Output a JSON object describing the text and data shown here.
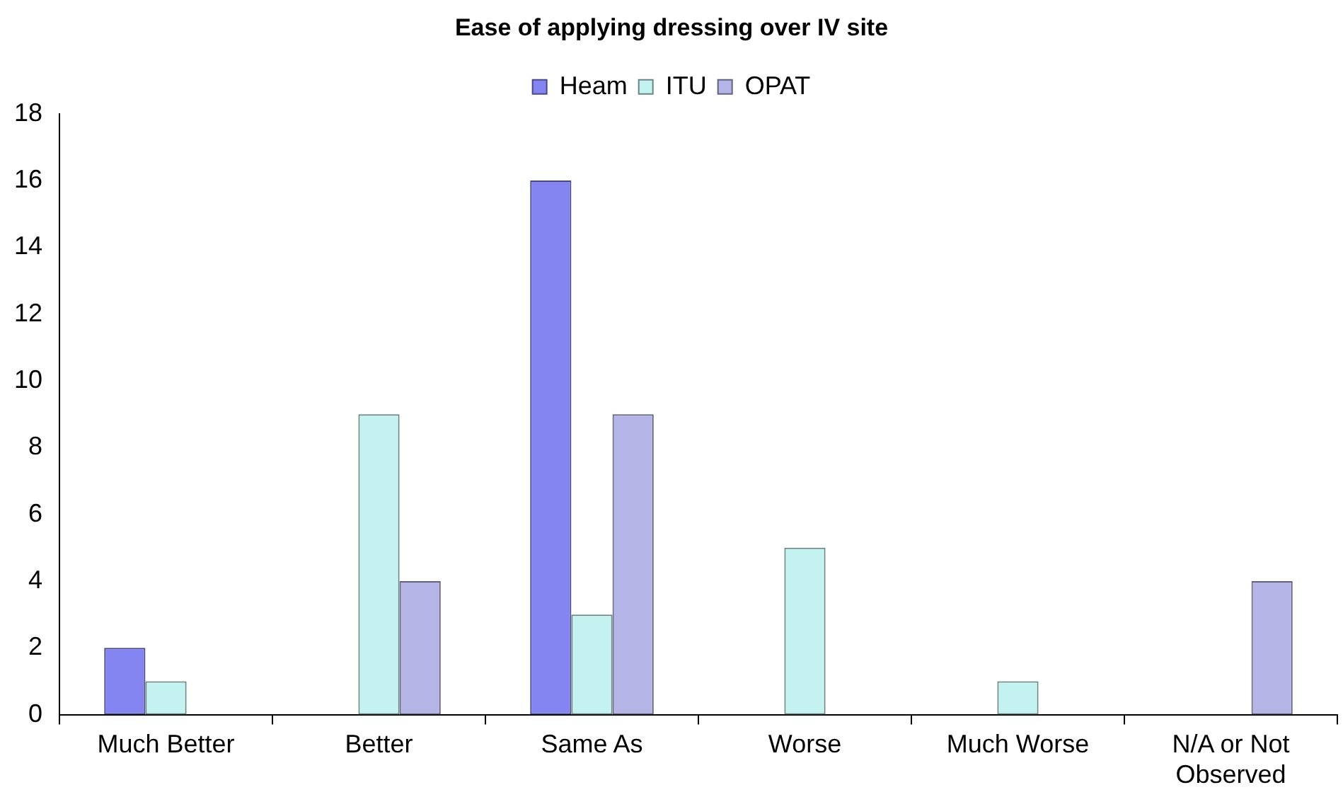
{
  "chart_data": {
    "type": "bar",
    "title": "Ease of applying dressing over IV site",
    "categories": [
      "Much Better",
      "Better",
      "Same As",
      "Worse",
      "Much Worse",
      "N/A or Not Observed"
    ],
    "series": [
      {
        "name": "Heam",
        "color": "#8585f2",
        "values": [
          2,
          0,
          16,
          0,
          0,
          0
        ]
      },
      {
        "name": "ITU",
        "color": "#c4f2f0",
        "values": [
          1,
          9,
          3,
          5,
          1,
          0
        ]
      },
      {
        "name": "OPAT",
        "color": "#b4b4e6",
        "values": [
          0,
          4,
          9,
          0,
          0,
          4
        ]
      }
    ],
    "ylim": [
      0,
      18
    ],
    "yticks": [
      0,
      2,
      4,
      6,
      8,
      10,
      12,
      14,
      16,
      18
    ],
    "grid": false,
    "legend": "top"
  }
}
